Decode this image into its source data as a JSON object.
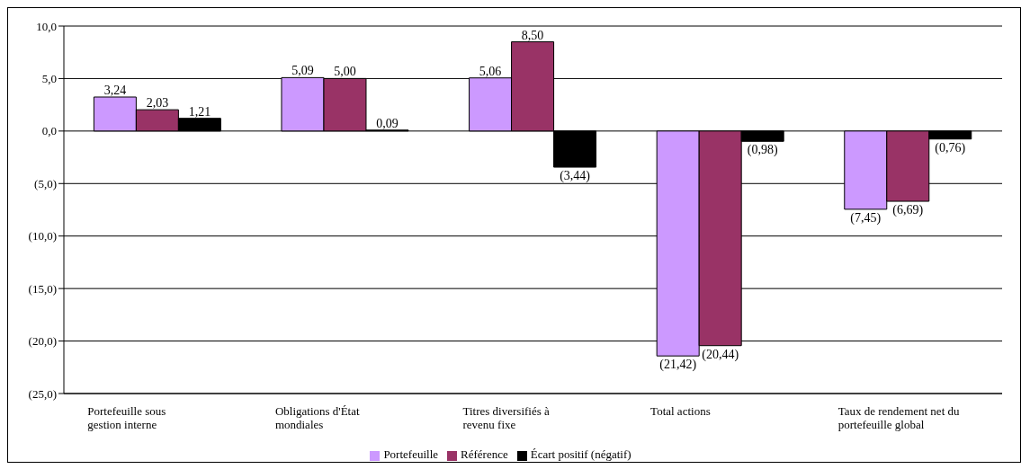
{
  "chart_data": {
    "type": "bar",
    "categories": [
      "Portefeuille sous gestion interne",
      "Obligations d'État mondiales",
      "Titres diversifiés à revenu fixe",
      "Total actions",
      "Taux de rendement net du portefeuille global"
    ],
    "series": [
      {
        "name": "Portefeuille",
        "color": "#cc99ff",
        "values": [
          3.24,
          5.09,
          5.06,
          -21.42,
          -7.45
        ],
        "value_labels": [
          "3,24",
          "5,09",
          "5,06",
          "(21,42)",
          "(7,45)"
        ]
      },
      {
        "name": "Référence",
        "color": "#993366",
        "values": [
          2.03,
          5.0,
          8.5,
          -20.44,
          -6.69
        ],
        "value_labels": [
          "2,03",
          "5,00",
          "8,50",
          "(20,44)",
          "(6,69)"
        ]
      },
      {
        "name": "Écart positif (négatif)",
        "color": "#000000",
        "values": [
          1.21,
          0.09,
          -3.44,
          -0.98,
          -0.76
        ],
        "value_labels": [
          "1,21",
          "0,09",
          "(3,44)",
          "(0,98)",
          "(0,76)"
        ]
      }
    ],
    "ylim": [
      -25,
      10
    ],
    "yticks": [
      {
        "value": -25,
        "label": "(25,0)"
      },
      {
        "value": -20,
        "label": "(20,0)"
      },
      {
        "value": -15,
        "label": "(15,0)"
      },
      {
        "value": -10,
        "label": "(10,0)"
      },
      {
        "value": -5,
        "label": "(5,0)"
      },
      {
        "value": 0,
        "label": "0,0"
      },
      {
        "value": 5,
        "label": "5,0"
      },
      {
        "value": 10,
        "label": "10,0"
      }
    ],
    "grid": "y",
    "legend": "bottom"
  }
}
